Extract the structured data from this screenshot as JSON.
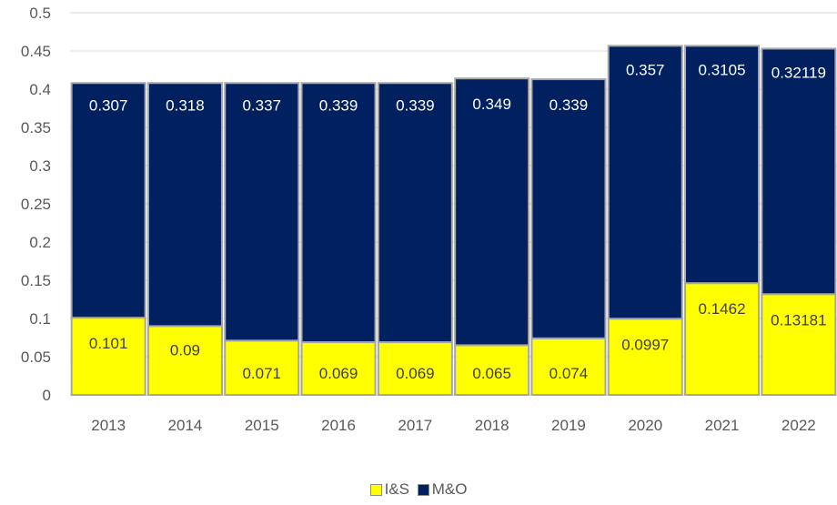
{
  "chart_data": {
    "type": "bar",
    "stacked": true,
    "categories": [
      "2013",
      "2014",
      "2015",
      "2016",
      "2017",
      "2018",
      "2019",
      "2020",
      "2021",
      "2022"
    ],
    "series": [
      {
        "name": "I&S",
        "color": "#ffff00",
        "values": [
          0.101,
          0.09,
          0.071,
          0.069,
          0.069,
          0.065,
          0.074,
          0.0997,
          0.1462,
          0.13181
        ],
        "labels": [
          "0.101",
          "0.09",
          "0.071",
          "0.069",
          "0.069",
          "0.065",
          "0.074",
          "0.0997",
          "0.1462",
          "0.13181"
        ]
      },
      {
        "name": "M&O",
        "color": "#002060",
        "values": [
          0.307,
          0.318,
          0.337,
          0.339,
          0.339,
          0.349,
          0.339,
          0.357,
          0.3105,
          0.32119
        ],
        "labels": [
          "0.307",
          "0.318",
          "0.337",
          "0.339",
          "0.339",
          "0.349",
          "0.339",
          "0.357",
          "0.3105",
          "0.32119"
        ]
      }
    ],
    "ylim": [
      0,
      0.5
    ],
    "yticks": [
      "0",
      "0.05",
      "0.1",
      "0.15",
      "0.2",
      "0.25",
      "0.3",
      "0.35",
      "0.4",
      "0.45",
      "0.5"
    ],
    "grid": true,
    "legend": "bottom",
    "title": "",
    "xlabel": "",
    "ylabel": ""
  }
}
